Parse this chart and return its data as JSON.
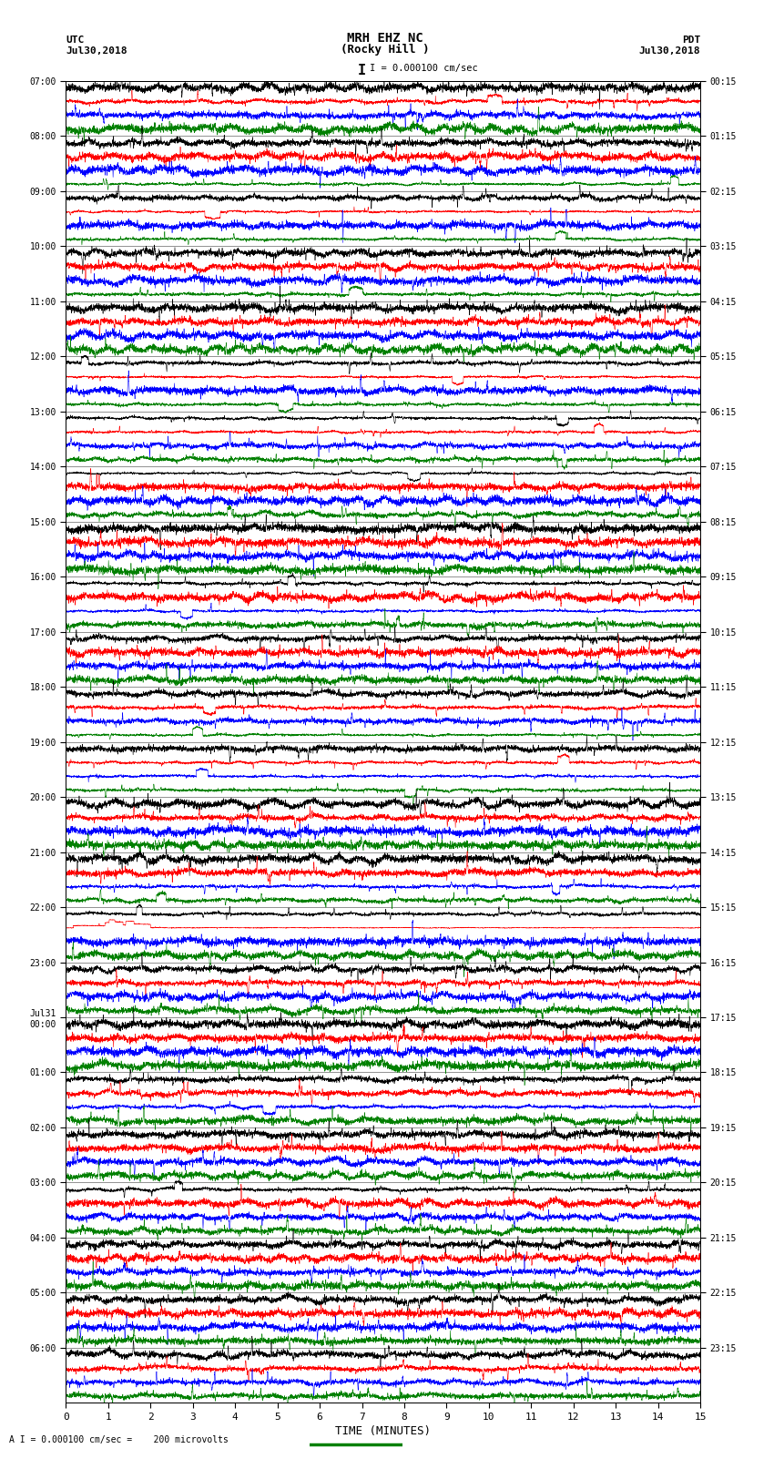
{
  "title_line1": "MRH EHZ NC",
  "title_line2": "(Rocky Hill )",
  "scale_label": "I = 0.000100 cm/sec",
  "left_label_line1": "UTC",
  "left_label_line2": "Jul30,2018",
  "right_label_line1": "PDT",
  "right_label_line2": "Jul30,2018",
  "bottom_label": "TIME (MINUTES)",
  "scale_note": "A I = 0.000100 cm/sec =    200 microvolts",
  "xlabel_ticks": [
    0,
    1,
    2,
    3,
    4,
    5,
    6,
    7,
    8,
    9,
    10,
    11,
    12,
    13,
    14,
    15
  ],
  "utc_times": [
    "07:00",
    "08:00",
    "09:00",
    "10:00",
    "11:00",
    "12:00",
    "13:00",
    "14:00",
    "15:00",
    "16:00",
    "17:00",
    "18:00",
    "19:00",
    "20:00",
    "21:00",
    "22:00",
    "23:00",
    "Jul31\n00:00",
    "01:00",
    "02:00",
    "03:00",
    "04:00",
    "05:00",
    "06:00"
  ],
  "pdt_times": [
    "00:15",
    "01:15",
    "02:15",
    "03:15",
    "04:15",
    "05:15",
    "06:15",
    "07:15",
    "08:15",
    "09:15",
    "10:15",
    "11:15",
    "12:15",
    "13:15",
    "14:15",
    "15:15",
    "16:15",
    "17:15",
    "18:15",
    "19:15",
    "20:15",
    "21:15",
    "22:15",
    "23:15"
  ],
  "n_rows": 24,
  "n_minutes": 15,
  "colors": [
    "black",
    "red",
    "blue",
    "green"
  ],
  "bg_color": "#ffffff",
  "trace_linewidth": 0.4,
  "seed": 42
}
